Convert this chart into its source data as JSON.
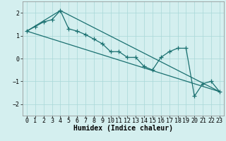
{
  "title": "",
  "xlabel": "Humidex (Indice chaleur)",
  "ylabel": "",
  "background_color": "#d4efef",
  "grid_color": "#a8d8d8",
  "line_color": "#1a7070",
  "xlim": [
    -0.5,
    23.5
  ],
  "ylim": [
    -2.5,
    2.5
  ],
  "xticks": [
    0,
    1,
    2,
    3,
    4,
    5,
    6,
    7,
    8,
    9,
    10,
    11,
    12,
    13,
    14,
    15,
    16,
    17,
    18,
    19,
    20,
    21,
    22,
    23
  ],
  "yticks": [
    -2,
    -1,
    0,
    1,
    2
  ],
  "line1_x": [
    0,
    1,
    2,
    3,
    4,
    5,
    6,
    7,
    8,
    9,
    10,
    11,
    12,
    13,
    14,
    15,
    16,
    17,
    18,
    19,
    20,
    21,
    22,
    23
  ],
  "line1_y": [
    1.2,
    1.4,
    1.6,
    1.7,
    2.1,
    1.3,
    1.2,
    1.05,
    0.85,
    0.65,
    0.3,
    0.3,
    0.05,
    0.05,
    -0.35,
    -0.5,
    0.05,
    0.3,
    0.45,
    0.45,
    -1.65,
    -1.1,
    -1.0,
    -1.45
  ],
  "line2_x": [
    0,
    4,
    23
  ],
  "line2_y": [
    1.2,
    2.1,
    -1.45
  ],
  "line3_x": [
    0,
    23
  ],
  "line3_y": [
    1.2,
    -1.45
  ],
  "marker": "+",
  "markersize": 4,
  "linewidth": 0.9,
  "xlabel_fontsize": 7,
  "tick_fontsize": 6
}
